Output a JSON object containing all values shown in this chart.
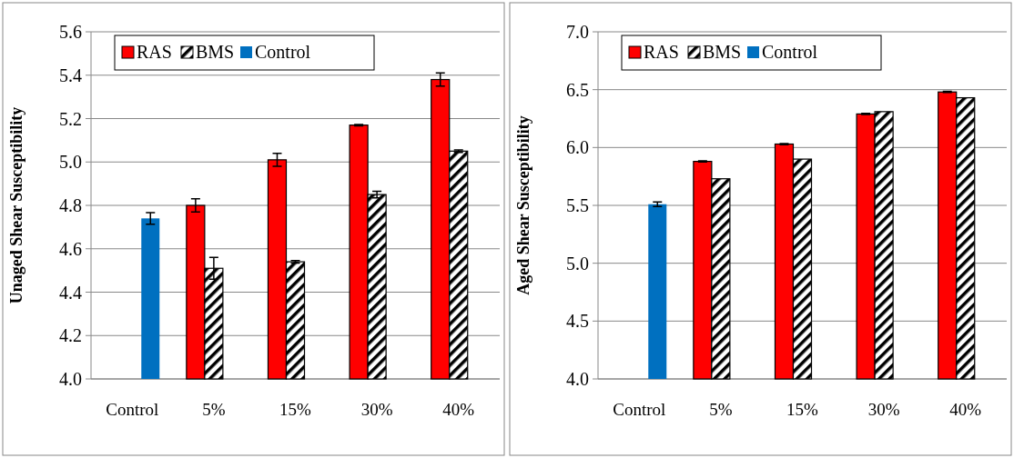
{
  "chart_data": [
    {
      "type": "bar",
      "ylabel": "Unaged Shear Susceptibility",
      "categories": [
        "Control",
        "5%",
        "15%",
        "30%",
        "40%"
      ],
      "ylim": [
        4,
        5.6
      ],
      "yticks": [
        {
          "value": 4,
          "label": "4.0"
        },
        4.2,
        4.4,
        4.6,
        4.8,
        {
          "value": 5,
          "label": "5.0"
        },
        5.2,
        5.4,
        5.6
      ],
      "grid": "y",
      "legend": "top left",
      "series": [
        {
          "name": "RAS",
          "color": "#ff0000",
          "values": [
            null,
            4.8,
            5.01,
            5.17,
            5.38
          ],
          "errors": [
            null,
            0.03,
            0.03,
            0.003,
            0.03
          ]
        },
        {
          "name": "BMS",
          "color": "#000000",
          "values": [
            null,
            4.51,
            4.54,
            4.85,
            5.05
          ],
          "errors": [
            null,
            0.05,
            0.006,
            0.015,
            0.006
          ]
        },
        {
          "name": "Control",
          "color": "#0070c0",
          "values": [
            4.74,
            null,
            null,
            null,
            null
          ],
          "errors": [
            0.027,
            null,
            null,
            null,
            null
          ]
        }
      ]
    },
    {
      "type": "bar",
      "ylabel": "Aged Shear Susceptibility",
      "categories": [
        "Control",
        "5%",
        "15%",
        "30%",
        "40%"
      ],
      "ylim": [
        4,
        7
      ],
      "yticks": [
        {
          "value": 4,
          "label": "4.0"
        },
        4.5,
        {
          "value": 5,
          "label": "5.0"
        },
        5.5,
        {
          "value": 6,
          "label": "6.0"
        },
        6.5,
        {
          "value": 7,
          "label": "7.0"
        }
      ],
      "grid": "y",
      "legend": "top left",
      "series": [
        {
          "name": "RAS",
          "color": "#ff0000",
          "values": [
            null,
            5.88,
            6.03,
            6.29,
            6.48
          ],
          "errors": [
            null,
            0.005,
            0.005,
            0.005,
            0.005
          ]
        },
        {
          "name": "BMS",
          "color": "#000000",
          "values": [
            null,
            5.73,
            5.9,
            6.31,
            6.43
          ]
        },
        {
          "name": "Control",
          "color": "#0070c0",
          "values": [
            5.51,
            null,
            null,
            null,
            null
          ],
          "errors": [
            0.02,
            null,
            null,
            null,
            null
          ]
        }
      ]
    }
  ]
}
